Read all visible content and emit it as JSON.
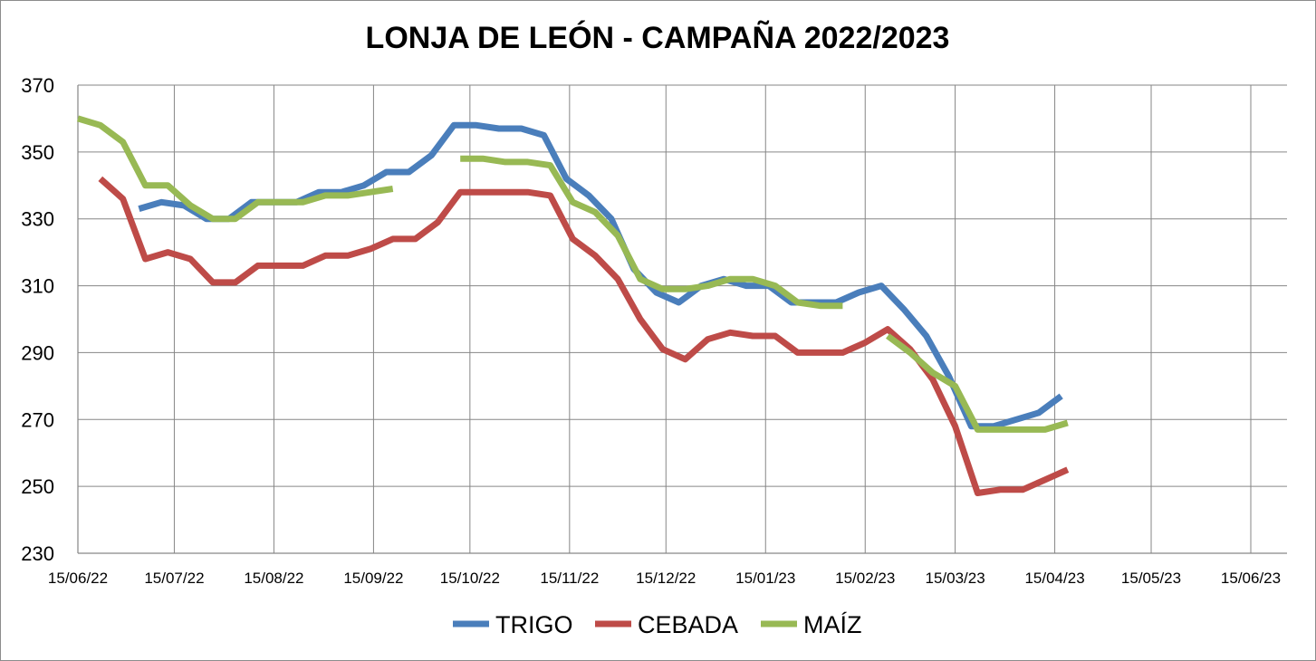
{
  "chart_data": {
    "type": "line",
    "title": "LONJA DE LEÓN - CAMPAÑA 2022/2023",
    "xlabel": "",
    "ylabel": "",
    "x_axis": {
      "type": "date",
      "range": [
        "2022-06-15",
        "2023-06-15"
      ]
    },
    "ylim": [
      230,
      370
    ],
    "y_ticks": [
      230,
      250,
      270,
      290,
      310,
      330,
      350,
      370
    ],
    "x_ticks": [
      "15/06/22",
      "15/07/22",
      "15/08/22",
      "15/09/22",
      "15/10/22",
      "15/11/22",
      "15/12/22",
      "15/01/23",
      "15/02/23",
      "15/03/23",
      "15/04/23",
      "15/05/23",
      "15/06/23"
    ],
    "x_tick_dates": [
      "2022-06-15",
      "2022-07-15",
      "2022-08-15",
      "2022-09-15",
      "2022-10-15",
      "2022-11-15",
      "2022-12-15",
      "2023-01-15",
      "2023-02-15",
      "2023-03-15",
      "2023-04-15",
      "2023-05-15",
      "2023-06-15"
    ],
    "grid": true,
    "legend": "bottom",
    "series": [
      {
        "name": "TRIGO",
        "color": "#4a7ebb",
        "segments": [
          [
            [
              "2022-07-04",
              333
            ],
            [
              "2022-07-11",
              335
            ],
            [
              "2022-07-18",
              334
            ],
            [
              "2022-07-25",
              330
            ],
            [
              "2022-08-01",
              330
            ],
            [
              "2022-08-08",
              335
            ],
            [
              "2022-08-15",
              335
            ],
            [
              "2022-08-22",
              335
            ],
            [
              "2022-08-29",
              338
            ],
            [
              "2022-09-05",
              338
            ],
            [
              "2022-09-12",
              340
            ],
            [
              "2022-09-19",
              344
            ],
            [
              "2022-09-26",
              344
            ],
            [
              "2022-10-03",
              349
            ],
            [
              "2022-10-10",
              358
            ],
            [
              "2022-10-17",
              358
            ],
            [
              "2022-10-24",
              357
            ],
            [
              "2022-10-31",
              357
            ],
            [
              "2022-11-07",
              355
            ],
            [
              "2022-11-14",
              342
            ],
            [
              "2022-11-21",
              337
            ],
            [
              "2022-11-28",
              330
            ],
            [
              "2022-12-05",
              315
            ],
            [
              "2022-12-12",
              308
            ],
            [
              "2022-12-19",
              305
            ],
            [
              "2022-12-26",
              310
            ],
            [
              "2023-01-02",
              312
            ],
            [
              "2023-01-09",
              310
            ],
            [
              "2023-01-16",
              310
            ],
            [
              "2023-01-23",
              305
            ],
            [
              "2023-01-30",
              305
            ],
            [
              "2023-02-06",
              305
            ],
            [
              "2023-02-13",
              308
            ],
            [
              "2023-02-20",
              310
            ],
            [
              "2023-02-27",
              303
            ],
            [
              "2023-03-06",
              295
            ],
            [
              "2023-03-13",
              283
            ],
            [
              "2023-03-20",
              268
            ],
            [
              "2023-03-27",
              268
            ],
            [
              "2023-04-03",
              270
            ],
            [
              "2023-04-10",
              272
            ],
            [
              "2023-04-17",
              277
            ]
          ]
        ]
      },
      {
        "name": "CEBADA",
        "color": "#be4b48",
        "segments": [
          [
            [
              "2022-06-22",
              342
            ],
            [
              "2022-06-29",
              336
            ],
            [
              "2022-07-06",
              318
            ],
            [
              "2022-07-13",
              320
            ],
            [
              "2022-07-20",
              318
            ],
            [
              "2022-07-27",
              311
            ],
            [
              "2022-08-03",
              311
            ],
            [
              "2022-08-10",
              316
            ],
            [
              "2022-08-17",
              316
            ],
            [
              "2022-08-24",
              316
            ],
            [
              "2022-08-31",
              319
            ],
            [
              "2022-09-07",
              319
            ],
            [
              "2022-09-14",
              321
            ],
            [
              "2022-09-21",
              324
            ],
            [
              "2022-09-28",
              324
            ],
            [
              "2022-10-05",
              329
            ],
            [
              "2022-10-12",
              338
            ],
            [
              "2022-10-19",
              338
            ],
            [
              "2022-10-26",
              338
            ],
            [
              "2022-11-02",
              338
            ],
            [
              "2022-11-09",
              337
            ],
            [
              "2022-11-16",
              324
            ],
            [
              "2022-11-23",
              319
            ],
            [
              "2022-11-30",
              312
            ],
            [
              "2022-12-07",
              300
            ],
            [
              "2022-12-14",
              291
            ],
            [
              "2022-12-21",
              288
            ],
            [
              "2022-12-28",
              294
            ],
            [
              "2023-01-04",
              296
            ],
            [
              "2023-01-11",
              295
            ],
            [
              "2023-01-18",
              295
            ],
            [
              "2023-01-25",
              290
            ],
            [
              "2023-02-01",
              290
            ],
            [
              "2023-02-08",
              290
            ],
            [
              "2023-02-15",
              293
            ],
            [
              "2023-02-22",
              297
            ],
            [
              "2023-03-01",
              291
            ],
            [
              "2023-03-08",
              282
            ],
            [
              "2023-03-15",
              268
            ],
            [
              "2023-03-22",
              248
            ],
            [
              "2023-03-29",
              249
            ],
            [
              "2023-04-05",
              249
            ],
            [
              "2023-04-12",
              252
            ],
            [
              "2023-04-19",
              255
            ]
          ]
        ]
      },
      {
        "name": "MAÍZ",
        "color": "#98b954",
        "segments": [
          [
            [
              "2022-06-15",
              360
            ],
            [
              "2022-06-22",
              358
            ],
            [
              "2022-06-29",
              353
            ],
            [
              "2022-07-06",
              340
            ],
            [
              "2022-07-13",
              340
            ],
            [
              "2022-07-20",
              334
            ],
            [
              "2022-07-27",
              330
            ],
            [
              "2022-08-03",
              330
            ],
            [
              "2022-08-10",
              335
            ],
            [
              "2022-08-17",
              335
            ],
            [
              "2022-08-24",
              335
            ],
            [
              "2022-08-31",
              337
            ],
            [
              "2022-09-07",
              337
            ],
            [
              "2022-09-14",
              338
            ],
            [
              "2022-09-21",
              339
            ]
          ],
          [
            [
              "2022-10-12",
              348
            ],
            [
              "2022-10-19",
              348
            ],
            [
              "2022-10-26",
              347
            ],
            [
              "2022-11-02",
              347
            ],
            [
              "2022-11-09",
              346
            ],
            [
              "2022-11-16",
              335
            ],
            [
              "2022-11-23",
              332
            ],
            [
              "2022-11-30",
              325
            ],
            [
              "2022-12-07",
              312
            ],
            [
              "2022-12-14",
              309
            ],
            [
              "2022-12-21",
              309
            ],
            [
              "2022-12-28",
              310
            ],
            [
              "2023-01-04",
              312
            ],
            [
              "2023-01-11",
              312
            ],
            [
              "2023-01-18",
              310
            ],
            [
              "2023-01-25",
              305
            ],
            [
              "2023-02-01",
              304
            ],
            [
              "2023-02-08",
              304
            ]
          ],
          [
            [
              "2023-02-22",
              295
            ],
            [
              "2023-03-01",
              290
            ],
            [
              "2023-03-08",
              284
            ],
            [
              "2023-03-15",
              280
            ],
            [
              "2023-03-22",
              267
            ],
            [
              "2023-03-29",
              267
            ],
            [
              "2023-04-05",
              267
            ],
            [
              "2023-04-12",
              267
            ],
            [
              "2023-04-19",
              269
            ]
          ]
        ]
      }
    ]
  }
}
